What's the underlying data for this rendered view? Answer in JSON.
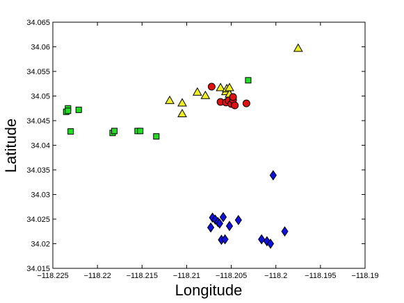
{
  "chart_data": {
    "type": "scatter",
    "title": "",
    "xlabel": "Longitude",
    "ylabel": "Latitude",
    "xlim": [
      -118.225,
      -118.19
    ],
    "ylim": [
      34.015,
      34.065
    ],
    "grid": false,
    "x_ticks": [
      "−118.225",
      "−118.22",
      "−118.215",
      "−118.21",
      "−118.205",
      "−118.2",
      "−118.195",
      "−118.19"
    ],
    "x_tick_values": [
      -118.225,
      -118.22,
      -118.215,
      -118.21,
      -118.205,
      -118.2,
      -118.195,
      -118.19
    ],
    "y_ticks": [
      "34.015",
      "34.02",
      "34.025",
      "34.03",
      "34.035",
      "34.04",
      "34.045",
      "34.05",
      "34.055",
      "34.06",
      "34.065"
    ],
    "y_tick_values": [
      34.015,
      34.02,
      34.025,
      34.03,
      34.035,
      34.04,
      34.045,
      34.05,
      34.055,
      34.06,
      34.065
    ],
    "series": [
      {
        "marker": "square",
        "color": "#22dd22",
        "points": [
          [
            -118.2235,
            34.0468
          ],
          [
            -118.2233,
            34.0475
          ],
          [
            -118.2233,
            34.047
          ],
          [
            -118.2221,
            34.0472
          ],
          [
            -118.223,
            34.0428
          ],
          [
            -118.2183,
            34.0425
          ],
          [
            -118.2181,
            34.0429
          ],
          [
            -118.2155,
            34.0429
          ],
          [
            -118.2152,
            34.0429
          ],
          [
            -118.2134,
            34.0418
          ],
          [
            -118.2031,
            34.0532
          ]
        ]
      },
      {
        "marker": "triangle",
        "color": "#eeee22",
        "points": [
          [
            -118.2119,
            34.0491
          ],
          [
            -118.2105,
            34.0486
          ],
          [
            -118.2105,
            34.0464
          ],
          [
            -118.2088,
            34.0508
          ],
          [
            -118.2079,
            34.0501
          ],
          [
            -118.2062,
            34.0517
          ],
          [
            -118.2056,
            34.0509
          ],
          [
            -118.2055,
            34.0515
          ],
          [
            -118.2052,
            34.0504
          ],
          [
            -118.2052,
            34.0517
          ],
          [
            -118.1975,
            34.0597
          ]
        ]
      },
      {
        "marker": "circle",
        "color": "#dd1111",
        "points": [
          [
            -118.2072,
            34.0519
          ],
          [
            -118.2062,
            34.0488
          ],
          [
            -118.2056,
            34.0487
          ],
          [
            -118.2053,
            34.0491
          ],
          [
            -118.205,
            34.0484
          ],
          [
            -118.2048,
            34.0492
          ],
          [
            -118.2046,
            34.0481
          ],
          [
            -118.2048,
            34.0498
          ],
          [
            -118.2033,
            34.0485
          ]
        ]
      },
      {
        "marker": "diamond",
        "color": "#1111dd",
        "points": [
          [
            -118.2071,
            34.0253
          ],
          [
            -118.2068,
            34.0249
          ],
          [
            -118.2065,
            34.0244
          ],
          [
            -118.2063,
            34.0241
          ],
          [
            -118.2059,
            34.0254
          ],
          [
            -118.2073,
            34.0233
          ],
          [
            -118.2061,
            34.0208
          ],
          [
            -118.2057,
            34.0209
          ],
          [
            -118.2052,
            34.0236
          ],
          [
            -118.2042,
            34.0248
          ],
          [
            -118.2016,
            34.0209
          ],
          [
            -118.201,
            34.0205
          ],
          [
            -118.2006,
            34.02
          ],
          [
            -118.2003,
            34.0339
          ],
          [
            -118.199,
            34.0225
          ]
        ]
      }
    ]
  }
}
